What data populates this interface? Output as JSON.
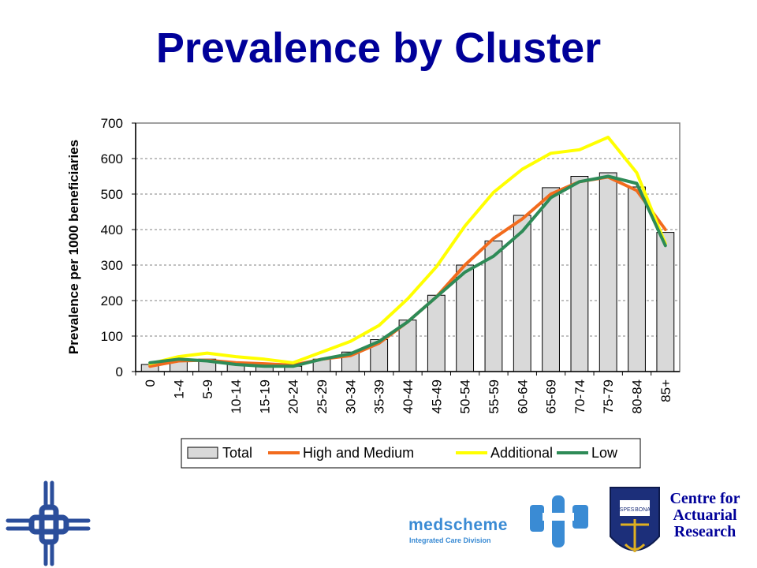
{
  "title": "Prevalence by Cluster",
  "chart_data": {
    "type": "bar",
    "ylabel": "Prevalence per 1000 beneficiaries",
    "xlabel": "",
    "ylim": [
      0,
      700
    ],
    "yticks": [
      0,
      100,
      200,
      300,
      400,
      500,
      600,
      700
    ],
    "grid": true,
    "legend_position": "bottom",
    "categories": [
      "0",
      "1-4",
      "5-9",
      "10-14",
      "15-19",
      "20-24",
      "25-29",
      "30-34",
      "35-39",
      "40-44",
      "45-49",
      "50-54",
      "55-59",
      "60-64",
      "65-69",
      "70-74",
      "75-79",
      "80-84",
      "85+"
    ],
    "bars": {
      "name": "Total",
      "values": [
        20,
        35,
        35,
        25,
        20,
        15,
        35,
        55,
        90,
        145,
        215,
        300,
        368,
        440,
        518,
        550,
        560,
        520,
        392
      ],
      "color": "#d9d9d9"
    },
    "series": [
      {
        "name": "High and Medium",
        "color": "#f26b1d",
        "values": [
          15,
          30,
          32,
          25,
          22,
          18,
          35,
          45,
          80,
          140,
          210,
          300,
          375,
          430,
          500,
          535,
          548,
          510,
          400
        ]
      },
      {
        "name": "Additional",
        "color": "#ffff00",
        "values": [
          22,
          42,
          52,
          42,
          35,
          25,
          55,
          85,
          130,
          205,
          295,
          410,
          505,
          570,
          615,
          625,
          660,
          560,
          360
        ]
      },
      {
        "name": "Low",
        "color": "#2e8b57",
        "values": [
          25,
          35,
          30,
          20,
          15,
          15,
          35,
          50,
          85,
          140,
          210,
          280,
          325,
          395,
          490,
          535,
          550,
          530,
          355
        ]
      }
    ]
  },
  "footer": {
    "medscheme_name": "medscheme",
    "medscheme_division": "Integrated Care Division",
    "car_line1": "Centre for",
    "car_line2": "Actuarial",
    "car_line3": "Research",
    "crest_motto_left": "SPES",
    "crest_motto_right": "BONA"
  }
}
